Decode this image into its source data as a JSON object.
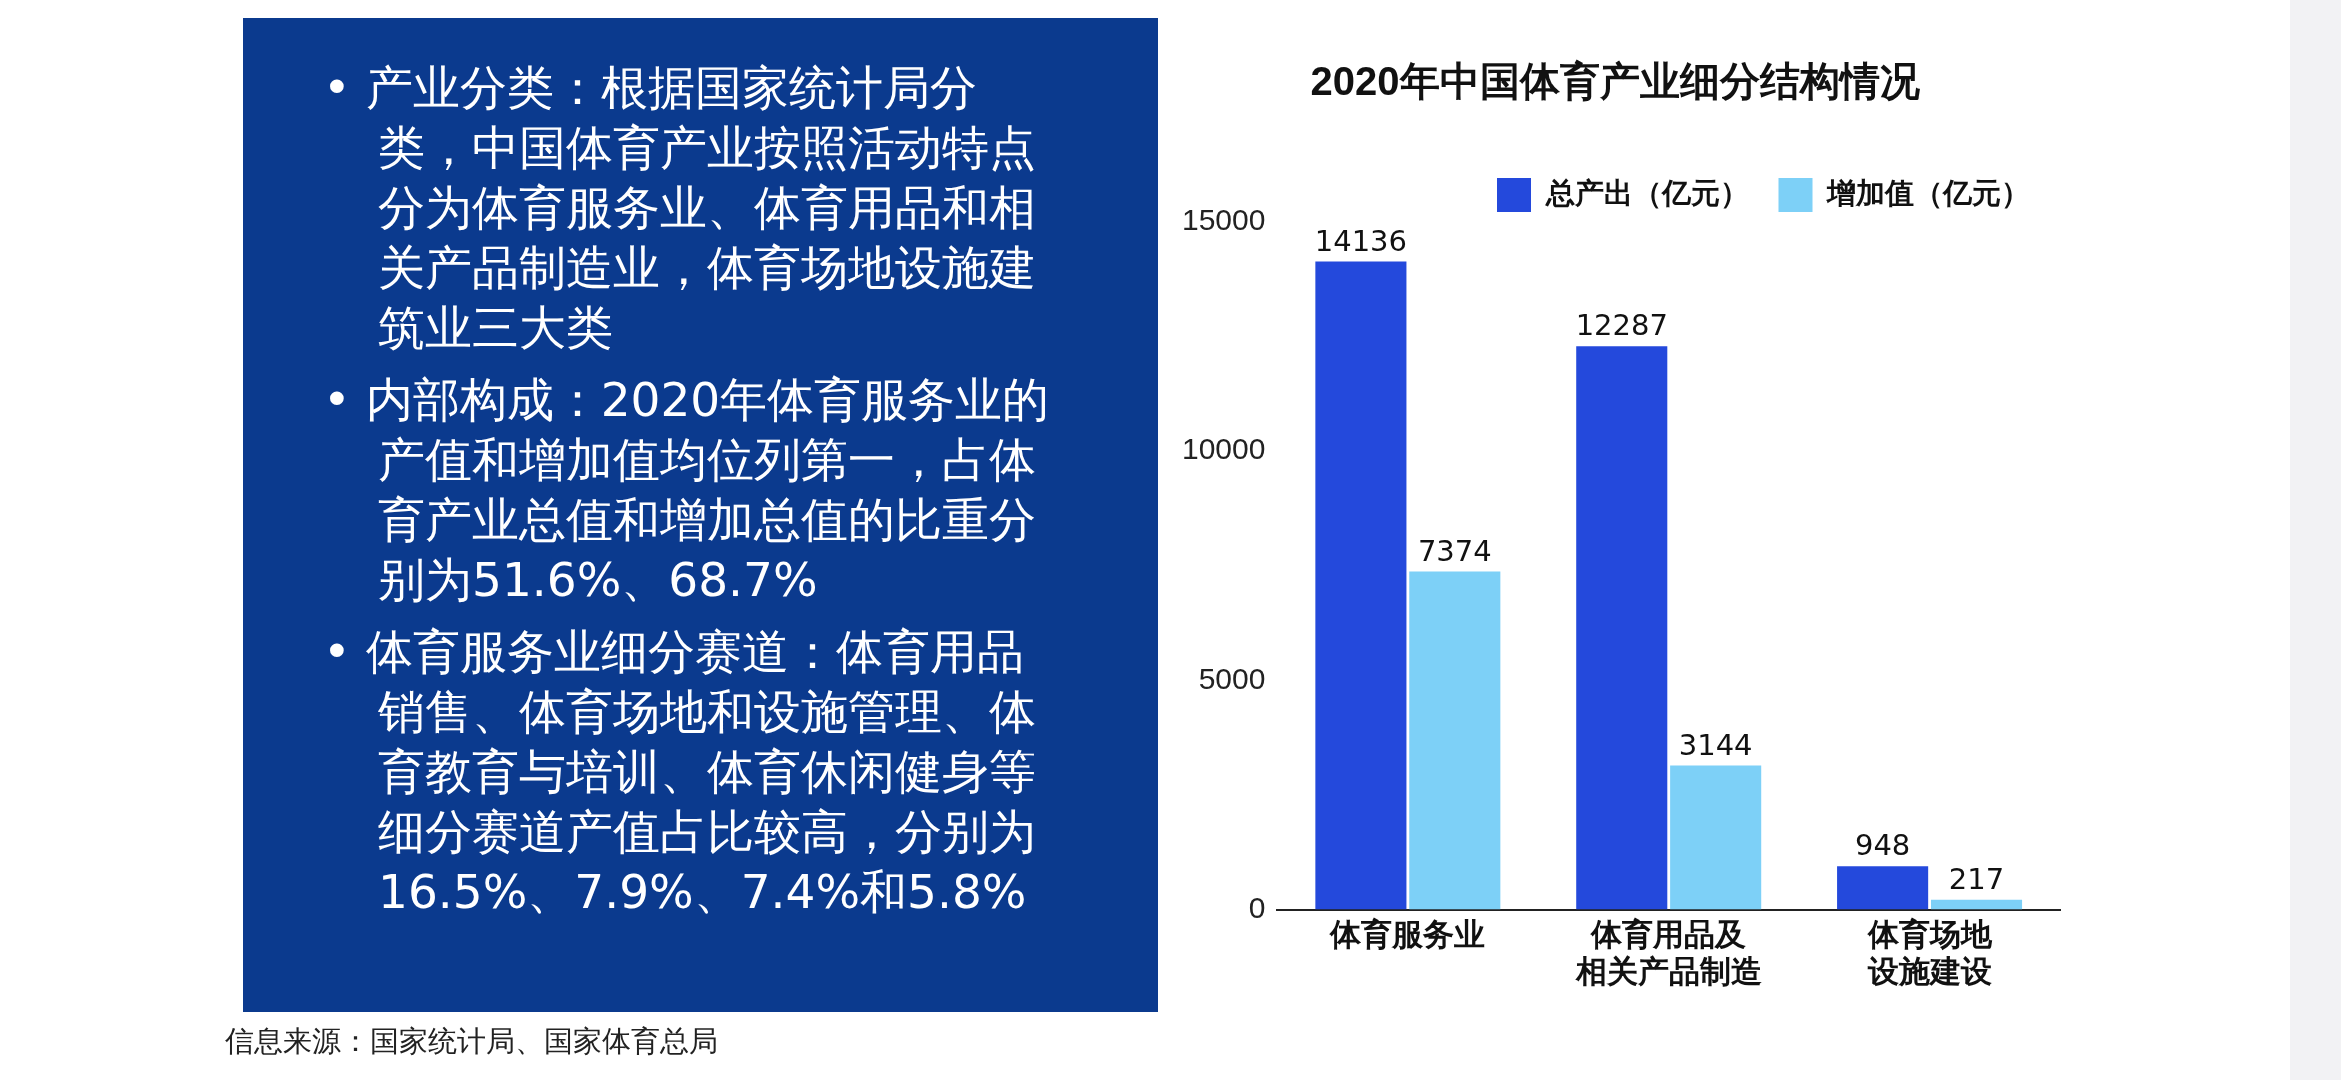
{
  "chart_data": [
    {
      "type": "other",
      "annotations": [
        "• 产业分类：根据国家统计局分类，中国体育产业按照活动特点分为体育服务业、体育用品和相关产品制造业，体育场地设施建筑业三大类",
        "• 内部构成：2020年体育服务业的产值和增加值均位列第一，占体育产业总值和增加总值的比重分别为51.6%、68.7%",
        "• 体育服务业细分赛道：体育用品销售、体育场地和设施管理、体育教育与培训、体育休闲健身等细分赛道产值占比较高，分别为16.5%、7.9%、7.4%和5.8%"
      ]
    },
    {
      "type": "bar",
      "title": "2020年中国体育产业细分结构情况",
      "categories": [
        "体育服务业",
        "体育用品及相关产品制造",
        "体育场地设施建设"
      ],
      "series": [
        {
          "name": "总产出（亿元）",
          "color": "#2449dc",
          "values": [
            14136,
            12287,
            948
          ]
        },
        {
          "name": "增加值（亿元）",
          "color": "#7dd0f7",
          "values": [
            7374,
            3144,
            217
          ]
        }
      ],
      "ylim": [
        0,
        15000
      ],
      "yticks": [
        0,
        5000,
        10000,
        15000
      ],
      "legend": "top right",
      "data_labels": true,
      "annotations": [
        "信息来源：国家统计局、国家体育总局"
      ]
    }
  ]
}
